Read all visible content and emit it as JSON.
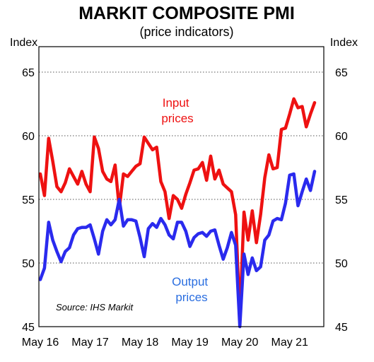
{
  "chart_data": {
    "type": "line",
    "title": "MARKIT COMPOSITE PMI",
    "subtitle": "(price indicators)",
    "ylabel_left": "Index",
    "ylabel_right": "Index",
    "ylim": [
      45,
      67
    ],
    "y_ticks": [
      45,
      50,
      55,
      60,
      65
    ],
    "x_ticks": [
      "May 16",
      "May 17",
      "May 18",
      "May 19",
      "May 20",
      "May 21"
    ],
    "grid": "horizontal dotted",
    "source": "Source: IHS Markit",
    "x": [
      "2016-05",
      "2016-06",
      "2016-07",
      "2016-08",
      "2016-09",
      "2016-10",
      "2016-11",
      "2016-12",
      "2017-01",
      "2017-02",
      "2017-03",
      "2017-04",
      "2017-05",
      "2017-06",
      "2017-07",
      "2017-08",
      "2017-09",
      "2017-10",
      "2017-11",
      "2017-12",
      "2018-01",
      "2018-02",
      "2018-03",
      "2018-04",
      "2018-05",
      "2018-06",
      "2018-07",
      "2018-08",
      "2018-09",
      "2018-10",
      "2018-11",
      "2018-12",
      "2019-01",
      "2019-02",
      "2019-03",
      "2019-04",
      "2019-05",
      "2019-06",
      "2019-07",
      "2019-08",
      "2019-09",
      "2019-10",
      "2019-11",
      "2019-12",
      "2020-01",
      "2020-02",
      "2020-03",
      "2020-04",
      "2020-05",
      "2020-06",
      "2020-07",
      "2020-08",
      "2020-09",
      "2020-10",
      "2020-11",
      "2020-12",
      "2021-01",
      "2021-02",
      "2021-03",
      "2021-04",
      "2021-05",
      "2021-06",
      "2021-07",
      "2021-08",
      "2021-09",
      "2021-10",
      "2021-11"
    ],
    "series": [
      {
        "name": "Input prices",
        "color": "#ee1111",
        "values": [
          57.0,
          55.3,
          59.8,
          58.0,
          56.0,
          55.6,
          56.3,
          57.4,
          56.8,
          56.2,
          57.2,
          56.2,
          55.6,
          59.9,
          59.0,
          57.2,
          56.6,
          56.4,
          57.7,
          54.3,
          57.0,
          56.8,
          57.2,
          57.6,
          57.8,
          59.9,
          59.4,
          58.9,
          59.1,
          56.4,
          55.6,
          53.5,
          55.3,
          55.0,
          54.3,
          55.4,
          56.3,
          57.3,
          57.4,
          57.9,
          56.5,
          58.4,
          56.6,
          57.3,
          56.2,
          55.9,
          55.6,
          53.8,
          45.7,
          54.0,
          51.8,
          54.1,
          51.6,
          53.8,
          56.7,
          58.5,
          57.4,
          57.5,
          60.5,
          60.6,
          61.7,
          62.9,
          62.2,
          62.3,
          60.7,
          61.7,
          62.6
        ]
      },
      {
        "name": "Output prices",
        "color": "#2a2aee",
        "values": [
          48.7,
          49.6,
          53.2,
          51.8,
          50.9,
          50.1,
          50.9,
          51.2,
          52.2,
          52.7,
          52.8,
          52.8,
          53.0,
          51.9,
          50.7,
          52.5,
          53.4,
          53.0,
          53.4,
          55.0,
          52.9,
          53.4,
          53.4,
          53.3,
          52.0,
          50.5,
          52.7,
          53.1,
          52.8,
          53.5,
          53.0,
          52.2,
          51.9,
          53.2,
          53.2,
          52.5,
          51.3,
          52.0,
          52.3,
          52.4,
          52.1,
          52.5,
          52.6,
          51.4,
          50.3,
          51.2,
          52.4,
          51.4,
          45.0,
          50.7,
          49.1,
          50.4,
          49.4,
          49.7,
          51.8,
          52.2,
          53.3,
          53.5,
          53.4,
          54.7,
          56.9,
          57.0,
          54.5,
          55.6,
          56.6,
          55.7,
          57.2
        ]
      }
    ],
    "annotations": [
      {
        "text_lines": [
          "Input",
          "prices"
        ],
        "color": "#ee1111"
      },
      {
        "text_lines": [
          "Output",
          "prices"
        ],
        "color": "#2a6ee0"
      }
    ]
  }
}
